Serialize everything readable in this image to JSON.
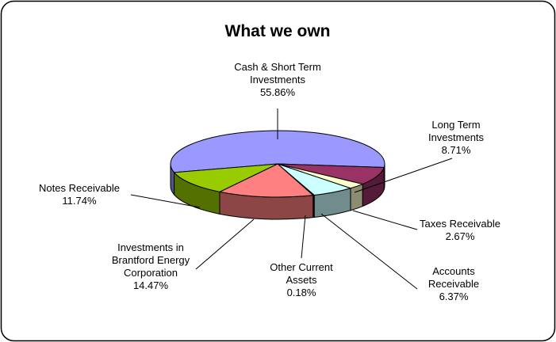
{
  "chart_data": {
    "type": "pie",
    "title": "What we own",
    "categories": [
      "Cash & Short Term Investments",
      "Long Term Investments",
      "Taxes Receivable",
      "Accounts Receivable",
      "Other Current Assets",
      "Investments in Brantford Energy Corporation",
      "Notes Receivable"
    ],
    "values": [
      55.86,
      8.71,
      2.67,
      6.37,
      0.18,
      14.47,
      11.74
    ],
    "value_labels": [
      "55.86%",
      "8.71%",
      "2.67%",
      "6.37%",
      "0.18%",
      "14.47%",
      "11.74%"
    ],
    "colors": [
      "#9999ff",
      "#993366",
      "#ffffcc",
      "#ccffff",
      "#660066",
      "#ff8080",
      "#99cc00"
    ],
    "three_d": true
  }
}
